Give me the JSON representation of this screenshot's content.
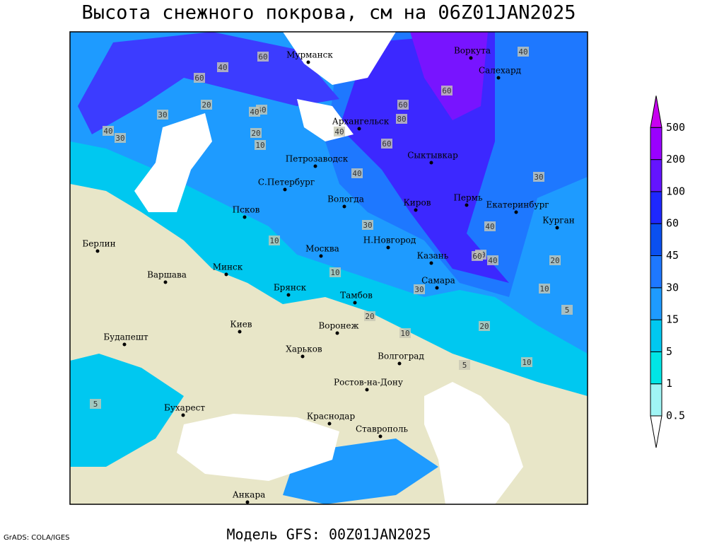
{
  "header": {
    "title": "Высота снежного покрова, см на 06Z01JAN2025"
  },
  "footer": {
    "model": "Модель GFS: 00Z01JAN2025",
    "credit": "GrADS: COLA/IGES"
  },
  "colorbar": {
    "levels": [
      0.5,
      1,
      5,
      15,
      30,
      45,
      60,
      100,
      200,
      500
    ],
    "colors": [
      "#ffffff",
      "#a0f5f5",
      "#00e6e6",
      "#00c8f0",
      "#1e9bff",
      "#1e78ff",
      "#0a50f0",
      "#1e28ff",
      "#6414ff",
      "#9a00ff",
      "#c800f0"
    ]
  },
  "cities": [
    "Мурманск",
    "Архангельск",
    "Петрозаводск",
    "С.Петербург",
    "Псков",
    "Вологда",
    "Воркута",
    "Салехард",
    "Сыктывкар",
    "Киров",
    "Пермь",
    "Екатеринбург",
    "Курган",
    "Берлин",
    "Варшава",
    "Минск",
    "Москва",
    "Н.Новгород",
    "Казань",
    "Самара",
    "Брянск",
    "Тамбов",
    "Воронеж",
    "Киев",
    "Харьков",
    "Волгоград",
    "Будапешт",
    "Бухарест",
    "Ростов-на-Дону",
    "Краснодар",
    "Ставрополь",
    "Анкара"
  ],
  "contour_labels": [
    60,
    40,
    60,
    40,
    30,
    20,
    40,
    40,
    30,
    20,
    10,
    40,
    60,
    80,
    60,
    40,
    60,
    40,
    30,
    40,
    20,
    10,
    10,
    30,
    60,
    40,
    20,
    10,
    5,
    20,
    10,
    5,
    10,
    20,
    5,
    30
  ]
}
